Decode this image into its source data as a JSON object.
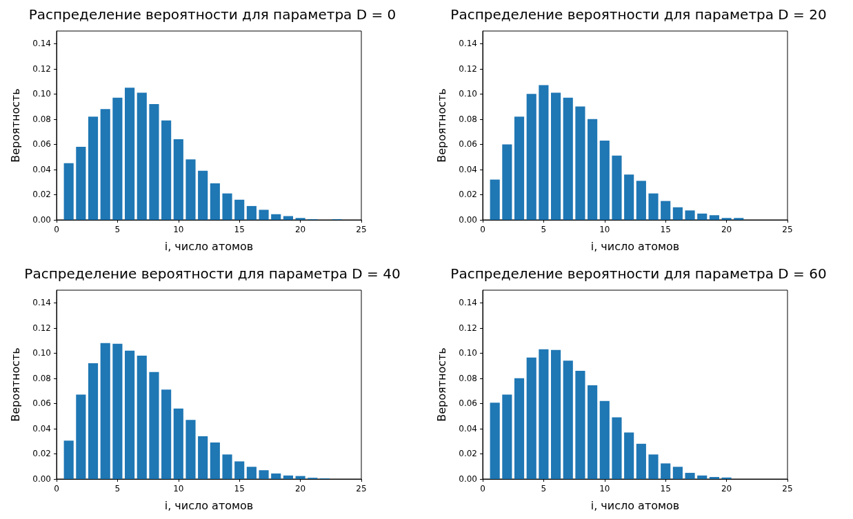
{
  "chart_data": [
    {
      "type": "bar",
      "title": "Распределение вероятности для параметра D = 0",
      "xlabel": "i, число атомов",
      "ylabel": "Вероятность",
      "x": [
        1,
        2,
        3,
        4,
        5,
        6,
        7,
        8,
        9,
        10,
        11,
        12,
        13,
        14,
        15,
        16,
        17,
        18,
        19,
        20,
        21,
        23
      ],
      "values": [
        0.045,
        0.058,
        0.082,
        0.088,
        0.097,
        0.105,
        0.101,
        0.092,
        0.079,
        0.064,
        0.048,
        0.039,
        0.029,
        0.021,
        0.016,
        0.011,
        0.008,
        0.0045,
        0.003,
        0.0015,
        0.0005,
        0.0005
      ],
      "color": "#1f77b4",
      "xlim": [
        0,
        25
      ],
      "xticks": [
        0,
        5,
        10,
        15,
        20,
        25
      ],
      "ylim": [
        0,
        0.15
      ],
      "yticks": [
        {
          "value": 0,
          "label": "0.00"
        },
        {
          "value": 0.02,
          "label": "0.02"
        },
        {
          "value": 0.04,
          "label": "0.04"
        },
        {
          "value": 0.06,
          "label": "0.06"
        },
        {
          "value": 0.08,
          "label": "0.08"
        },
        {
          "value": 0.1,
          "label": "0.10"
        },
        {
          "value": 0.12,
          "label": "0.12"
        },
        {
          "value": 0.14,
          "label": "0.14"
        }
      ]
    },
    {
      "type": "bar",
      "title": "Распределение вероятности для параметра D = 20",
      "xlabel": "i, число атомов",
      "ylabel": "Вероятность",
      "x": [
        1,
        2,
        3,
        4,
        5,
        6,
        7,
        8,
        9,
        10,
        11,
        12,
        13,
        14,
        15,
        16,
        17,
        18,
        19,
        20,
        21
      ],
      "values": [
        0.032,
        0.06,
        0.082,
        0.1,
        0.107,
        0.101,
        0.097,
        0.09,
        0.08,
        0.063,
        0.051,
        0.036,
        0.031,
        0.021,
        0.015,
        0.01,
        0.0075,
        0.005,
        0.0037,
        0.0015,
        0.0015
      ],
      "color": "#1f77b4",
      "xlim": [
        0,
        25
      ],
      "xticks": [
        0,
        5,
        10,
        15,
        20,
        25
      ],
      "ylim": [
        0,
        0.15
      ],
      "yticks": [
        {
          "value": 0,
          "label": "0.00"
        },
        {
          "value": 0.02,
          "label": "0.02"
        },
        {
          "value": 0.04,
          "label": "0.04"
        },
        {
          "value": 0.06,
          "label": "0.06"
        },
        {
          "value": 0.08,
          "label": "0.08"
        },
        {
          "value": 0.1,
          "label": "0.10"
        },
        {
          "value": 0.12,
          "label": "0.12"
        },
        {
          "value": 0.14,
          "label": "0.14"
        }
      ]
    },
    {
      "type": "bar",
      "title": "Распределение вероятности для параметра D = 40",
      "xlabel": "i, число атомов",
      "ylabel": "Вероятность",
      "x": [
        1,
        2,
        3,
        4,
        5,
        6,
        7,
        8,
        9,
        10,
        11,
        12,
        13,
        14,
        15,
        16,
        17,
        18,
        19,
        20,
        21,
        22
      ],
      "values": [
        0.0305,
        0.067,
        0.092,
        0.108,
        0.1075,
        0.102,
        0.098,
        0.085,
        0.071,
        0.056,
        0.047,
        0.034,
        0.029,
        0.0195,
        0.014,
        0.0097,
        0.007,
        0.0044,
        0.0028,
        0.0024,
        0.001,
        0.0005
      ],
      "color": "#1f77b4",
      "xlim": [
        0,
        25
      ],
      "xticks": [
        0,
        5,
        10,
        15,
        20,
        25
      ],
      "ylim": [
        0,
        0.15
      ],
      "yticks": [
        {
          "value": 0,
          "label": "0.00"
        },
        {
          "value": 0.02,
          "label": "0.02"
        },
        {
          "value": 0.04,
          "label": "0.04"
        },
        {
          "value": 0.06,
          "label": "0.06"
        },
        {
          "value": 0.08,
          "label": "0.08"
        },
        {
          "value": 0.1,
          "label": "0.10"
        },
        {
          "value": 0.12,
          "label": "0.12"
        },
        {
          "value": 0.14,
          "label": "0.14"
        }
      ]
    },
    {
      "type": "bar",
      "title": "Распределение вероятности для параметра D = 60",
      "xlabel": "i, число атомов",
      "ylabel": "Вероятность",
      "x": [
        1,
        2,
        3,
        4,
        5,
        6,
        7,
        8,
        9,
        10,
        11,
        12,
        13,
        14,
        15,
        16,
        17,
        18,
        19,
        20
      ],
      "values": [
        0.0606,
        0.067,
        0.08,
        0.0965,
        0.103,
        0.1025,
        0.094,
        0.086,
        0.0745,
        0.062,
        0.049,
        0.037,
        0.028,
        0.0195,
        0.0124,
        0.0097,
        0.0049,
        0.0028,
        0.0016,
        0.0012
      ],
      "color": "#1f77b4",
      "xlim": [
        0,
        25
      ],
      "xticks": [
        0,
        5,
        10,
        15,
        20,
        25
      ],
      "ylim": [
        0,
        0.15
      ],
      "yticks": [
        {
          "value": 0,
          "label": "0.00"
        },
        {
          "value": 0.02,
          "label": "0.02"
        },
        {
          "value": 0.04,
          "label": "0.04"
        },
        {
          "value": 0.06,
          "label": "0.06"
        },
        {
          "value": 0.08,
          "label": "0.08"
        },
        {
          "value": 0.1,
          "label": "0.10"
        },
        {
          "value": 0.12,
          "label": "0.12"
        },
        {
          "value": 0.14,
          "label": "0.14"
        }
      ]
    }
  ]
}
